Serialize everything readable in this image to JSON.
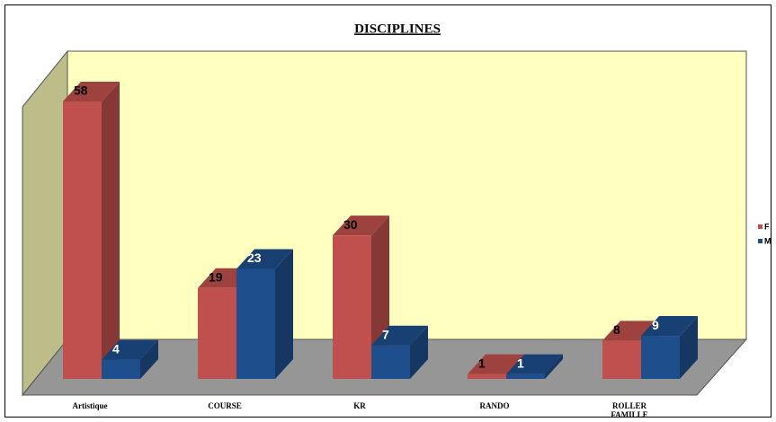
{
  "chart_data": {
    "type": "bar3d",
    "title": "DISCIPLINES",
    "categories": [
      "Artistique",
      "COURSE",
      "KR",
      "RANDO",
      "ROLLER FAMILLE"
    ],
    "series": [
      {
        "name": "F",
        "color": "#c0504d",
        "values": [
          58,
          19,
          30,
          1,
          8
        ]
      },
      {
        "name": "M",
        "color": "#1f4e8c",
        "values": [
          4,
          23,
          7,
          1,
          9
        ]
      }
    ],
    "ylim": [
      0,
      60
    ],
    "legend": "right"
  }
}
